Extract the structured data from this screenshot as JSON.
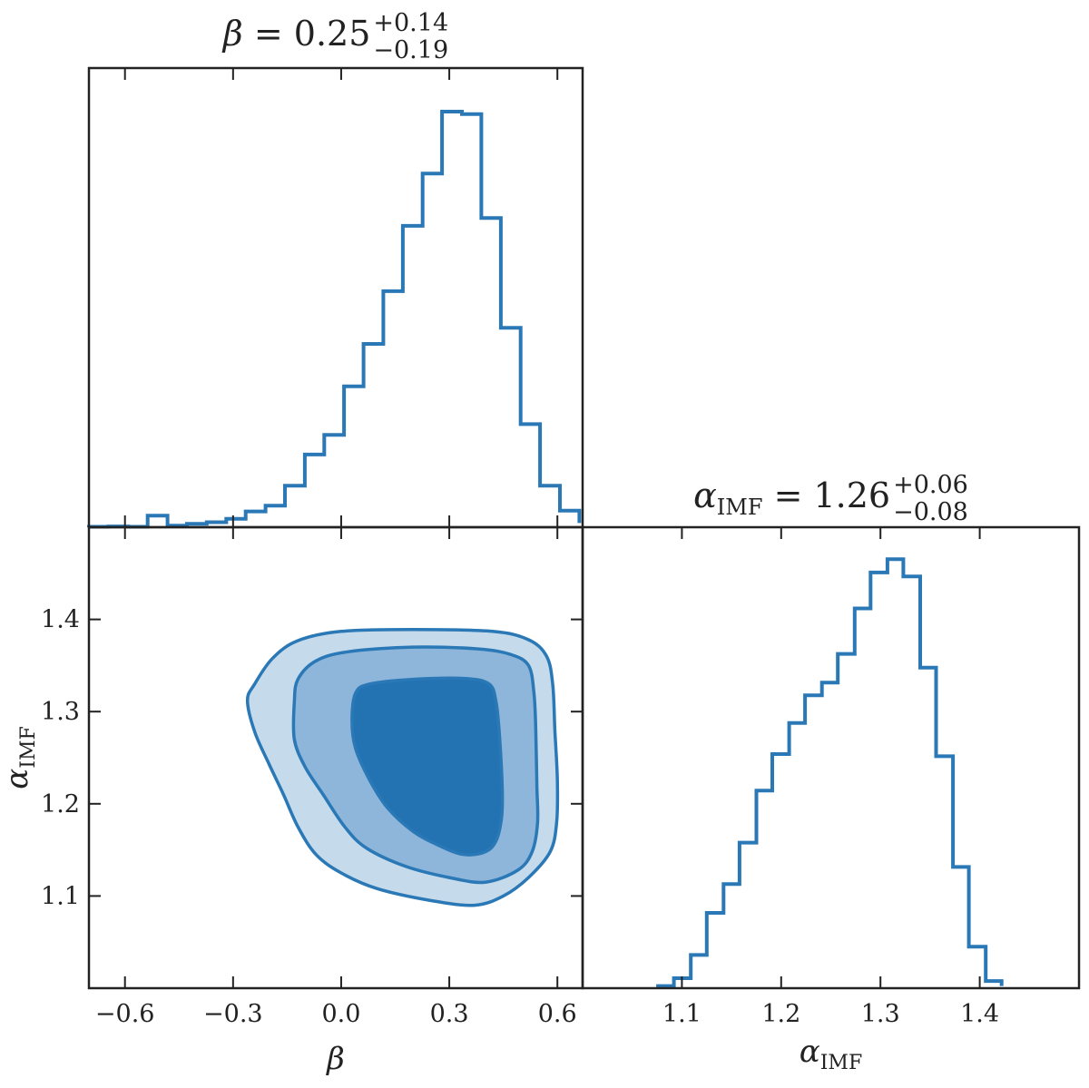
{
  "chart_data": {
    "type": "corner",
    "parameters": [
      {
        "symbol": "β",
        "subscript": ""
      },
      {
        "symbol": "α",
        "subscript": "IMF"
      }
    ],
    "titles": [
      {
        "symbol": "β",
        "subscript": "",
        "median": "0.25",
        "plus": "+0.14",
        "minus": "−0.19"
      },
      {
        "symbol": "α",
        "subscript": "IMF",
        "median": "1.26",
        "plus": "+0.06",
        "minus": "−0.08"
      }
    ],
    "colors": {
      "line": "#2a78b6",
      "fill_outer": "#c5dbec",
      "fill_middle": "#8db6da",
      "fill_inner": "#2372b2"
    },
    "panels": [
      {
        "id": "beta-hist",
        "type": "histogram",
        "xlim": [
          -0.7,
          0.67
        ],
        "bin_edges": [
          -0.7,
          -0.646,
          -0.591,
          -0.537,
          -0.482,
          -0.428,
          -0.373,
          -0.319,
          -0.265,
          -0.21,
          -0.156,
          -0.101,
          -0.047,
          0.008,
          0.062,
          0.117,
          0.171,
          0.226,
          0.28,
          0.335,
          0.389,
          0.443,
          0.498,
          0.552,
          0.607,
          0.661
        ],
        "counts": [
          0.001,
          0.002,
          0.001,
          0.028,
          0.004,
          0.008,
          0.012,
          0.02,
          0.038,
          0.052,
          0.1,
          0.175,
          0.222,
          0.339,
          0.441,
          0.568,
          0.725,
          0.851,
          1.0,
          0.994,
          0.744,
          0.48,
          0.248,
          0.1,
          0.04,
          0.01
        ]
      },
      {
        "id": "alpha-hist",
        "type": "histogram",
        "xlim": [
          1.0,
          1.5
        ],
        "bin_edges": [
          1.076,
          1.092,
          1.109,
          1.125,
          1.142,
          1.158,
          1.175,
          1.191,
          1.208,
          1.224,
          1.241,
          1.257,
          1.274,
          1.29,
          1.307,
          1.323,
          1.34,
          1.356,
          1.373,
          1.389,
          1.406,
          1.422
        ],
        "counts": [
          0.004,
          0.018,
          0.06,
          0.136,
          0.188,
          0.263,
          0.357,
          0.423,
          0.479,
          0.529,
          0.552,
          0.604,
          0.686,
          0.751,
          0.775,
          0.744,
          0.579,
          0.419,
          0.219,
          0.075,
          0.013,
          0.004
        ],
        "count_max": 0.775
      },
      {
        "id": "joint-contour",
        "type": "contour",
        "xlim": [
          -0.7,
          0.67
        ],
        "ylim": [
          1.0,
          1.5
        ],
        "levels": [
          {
            "name": "outer",
            "points": [
              [
                -0.26,
                1.312
              ],
              [
                -0.24,
                1.33
              ],
              [
                -0.19,
                1.358
              ],
              [
                -0.12,
                1.377
              ],
              [
                0.0,
                1.387
              ],
              [
                0.2,
                1.389
              ],
              [
                0.42,
                1.387
              ],
              [
                0.52,
                1.378
              ],
              [
                0.57,
                1.36
              ],
              [
                0.587,
                1.33
              ],
              [
                0.593,
                1.28
              ],
              [
                0.6,
                1.225
              ],
              [
                0.598,
                1.18
              ],
              [
                0.58,
                1.148
              ],
              [
                0.52,
                1.12
              ],
              [
                0.45,
                1.1
              ],
              [
                0.37,
                1.09
              ],
              [
                0.25,
                1.095
              ],
              [
                0.1,
                1.108
              ],
              [
                0.0,
                1.125
              ],
              [
                -0.07,
                1.145
              ],
              [
                -0.12,
                1.175
              ],
              [
                -0.16,
                1.21
              ],
              [
                -0.2,
                1.243
              ],
              [
                -0.24,
                1.278
              ]
            ]
          },
          {
            "name": "middle",
            "points": [
              [
                -0.13,
                1.31
              ],
              [
                -0.12,
                1.335
              ],
              [
                -0.07,
                1.355
              ],
              [
                0.02,
                1.365
              ],
              [
                0.2,
                1.37
              ],
              [
                0.38,
                1.368
              ],
              [
                0.47,
                1.362
              ],
              [
                0.52,
                1.35
              ],
              [
                0.535,
                1.32
              ],
              [
                0.54,
                1.28
              ],
              [
                0.543,
                1.22
              ],
              [
                0.545,
                1.18
              ],
              [
                0.53,
                1.148
              ],
              [
                0.49,
                1.128
              ],
              [
                0.4,
                1.115
              ],
              [
                0.3,
                1.12
              ],
              [
                0.18,
                1.132
              ],
              [
                0.07,
                1.152
              ],
              [
                0.01,
                1.175
              ],
              [
                -0.05,
                1.21
              ],
              [
                -0.1,
                1.24
              ],
              [
                -0.13,
                1.27
              ]
            ]
          },
          {
            "name": "inner",
            "points": [
              [
                0.04,
                1.32
              ],
              [
                0.08,
                1.33
              ],
              [
                0.2,
                1.335
              ],
              [
                0.34,
                1.336
              ],
              [
                0.41,
                1.33
              ],
              [
                0.43,
                1.31
              ],
              [
                0.44,
                1.27
              ],
              [
                0.447,
                1.215
              ],
              [
                0.445,
                1.185
              ],
              [
                0.43,
                1.16
              ],
              [
                0.4,
                1.148
              ],
              [
                0.34,
                1.145
              ],
              [
                0.27,
                1.155
              ],
              [
                0.2,
                1.17
              ],
              [
                0.13,
                1.195
              ],
              [
                0.08,
                1.225
              ],
              [
                0.04,
                1.26
              ],
              [
                0.03,
                1.29
              ]
            ]
          }
        ]
      }
    ],
    "ticks": {
      "beta": {
        "values": [
          -0.6,
          -0.3,
          0.0,
          0.3,
          0.6
        ],
        "labels": [
          "−0.6",
          "−0.3",
          "0.0",
          "0.3",
          "0.6"
        ]
      },
      "alpha_y": {
        "values": [
          1.1,
          1.2,
          1.3,
          1.4
        ],
        "labels": [
          "1.1",
          "1.2",
          "1.3",
          "1.4"
        ]
      },
      "alpha_x": {
        "values": [
          1.1,
          1.2,
          1.3,
          1.4
        ],
        "labels": [
          "1.1",
          "1.2",
          "1.3",
          "1.4"
        ]
      }
    }
  }
}
